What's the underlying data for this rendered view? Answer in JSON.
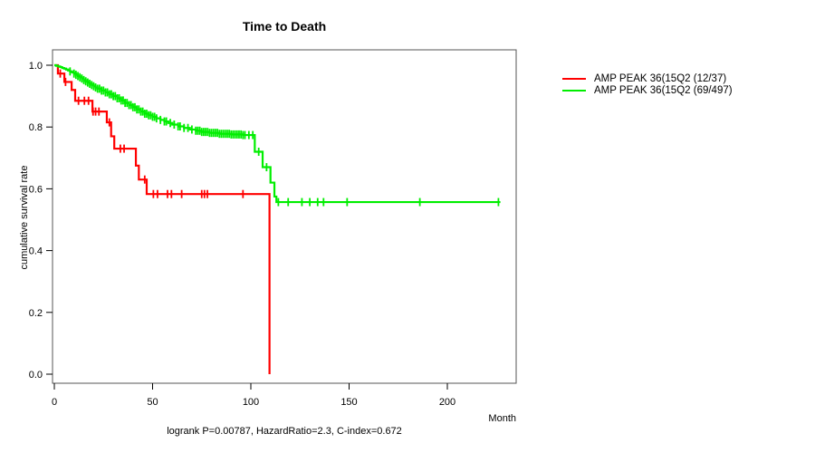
{
  "title": "Time to Death",
  "chart_data": {
    "type": "line",
    "subtype": "kaplan-meier-step-curves",
    "title": "Time to Death",
    "xlabel": "Month",
    "ylabel": "cumulative survival rate",
    "annotation": "logrank P=0.00787, HazardRatio=2.3, C-index=0.672",
    "xlim": [
      0,
      235
    ],
    "ylim": [
      0.0,
      1.0
    ],
    "x_ticks": [
      0,
      50,
      100,
      150,
      200
    ],
    "y_ticks": [
      0.0,
      0.2,
      0.4,
      0.6,
      0.8,
      1.0
    ],
    "grid": false,
    "legend_position": "right-outside",
    "axis_color": "#000000",
    "box_color": "#555555",
    "series": [
      {
        "name": "AMP PEAK 36(15Q2 (12/37)",
        "color": "#ff0000",
        "steps": [
          [
            0,
            1.0
          ],
          [
            1.8,
            0.973
          ],
          [
            5.1,
            0.946
          ],
          [
            8.8,
            0.92
          ],
          [
            10.6,
            0.885
          ],
          [
            19.4,
            0.85
          ],
          [
            26.7,
            0.815
          ],
          [
            28.9,
            0.77
          ],
          [
            30.5,
            0.73
          ],
          [
            41.5,
            0.675
          ],
          [
            43,
            0.63
          ],
          [
            47,
            0.583
          ],
          [
            109.5,
            0.0
          ]
        ],
        "end_month": 109.5,
        "censor_months": [
          3,
          5.7,
          12.3,
          15.3,
          17.4,
          19.7,
          21,
          22.7,
          28,
          33.6,
          35.5,
          46,
          50.4,
          52.5,
          57.6,
          59.6,
          64.8,
          75,
          76.4,
          77.9,
          96
        ]
      },
      {
        "name": "AMP PEAK 36(15Q2 (69/497)",
        "color": "#00ee00",
        "steps": [
          [
            0,
            1.0
          ],
          [
            1,
            0.998
          ],
          [
            2,
            0.996
          ],
          [
            3,
            0.994
          ],
          [
            4,
            0.991
          ],
          [
            5,
            0.989
          ],
          [
            6,
            0.986
          ],
          [
            7,
            0.983
          ],
          [
            8,
            0.98
          ],
          [
            9,
            0.977
          ],
          [
            10,
            0.973
          ],
          [
            11,
            0.969
          ],
          [
            12,
            0.965
          ],
          [
            13,
            0.961
          ],
          [
            14,
            0.957
          ],
          [
            15,
            0.952
          ],
          [
            16,
            0.948
          ],
          [
            17,
            0.944
          ],
          [
            18,
            0.94
          ],
          [
            19,
            0.936
          ],
          [
            20,
            0.932
          ],
          [
            21,
            0.928
          ],
          [
            22,
            0.924
          ],
          [
            24,
            0.918
          ],
          [
            26,
            0.912
          ],
          [
            28,
            0.906
          ],
          [
            30,
            0.9
          ],
          [
            32,
            0.893
          ],
          [
            34,
            0.886
          ],
          [
            36,
            0.878
          ],
          [
            38,
            0.871
          ],
          [
            40,
            0.864
          ],
          [
            42,
            0.857
          ],
          [
            44,
            0.85
          ],
          [
            46,
            0.843
          ],
          [
            48,
            0.838
          ],
          [
            50,
            0.833
          ],
          [
            52,
            0.828
          ],
          [
            54,
            0.823
          ],
          [
            56,
            0.818
          ],
          [
            58,
            0.813
          ],
          [
            60,
            0.808
          ],
          [
            63,
            0.802
          ],
          [
            66,
            0.797
          ],
          [
            69,
            0.792
          ],
          [
            72,
            0.788
          ],
          [
            75,
            0.784
          ],
          [
            79,
            0.781
          ],
          [
            84,
            0.778
          ],
          [
            90,
            0.776
          ],
          [
            96,
            0.774
          ],
          [
            102,
            0.72
          ],
          [
            106,
            0.67
          ],
          [
            110,
            0.62
          ],
          [
            112,
            0.575
          ],
          [
            113,
            0.557
          ]
        ],
        "end_month": 227,
        "censor_months": [
          8,
          10,
          11,
          12,
          13,
          14,
          15,
          16,
          17,
          18,
          19,
          20,
          21,
          22,
          23,
          24,
          25,
          26,
          27,
          28,
          29,
          30,
          31,
          32,
          33,
          34,
          35,
          36,
          37,
          38,
          39,
          40,
          41,
          42,
          43,
          44,
          45,
          46,
          47,
          48,
          49,
          50,
          51,
          52,
          54,
          56,
          57,
          59,
          61,
          63,
          64,
          66,
          68,
          70,
          72,
          73,
          74,
          75,
          76,
          77,
          78,
          79,
          80,
          81,
          82,
          83,
          84,
          85,
          86,
          87,
          88,
          89,
          90,
          91,
          92,
          93,
          94,
          95,
          96,
          97,
          99,
          101,
          104,
          108,
          114,
          119,
          126,
          130,
          134,
          137,
          149,
          186,
          226
        ]
      }
    ]
  }
}
